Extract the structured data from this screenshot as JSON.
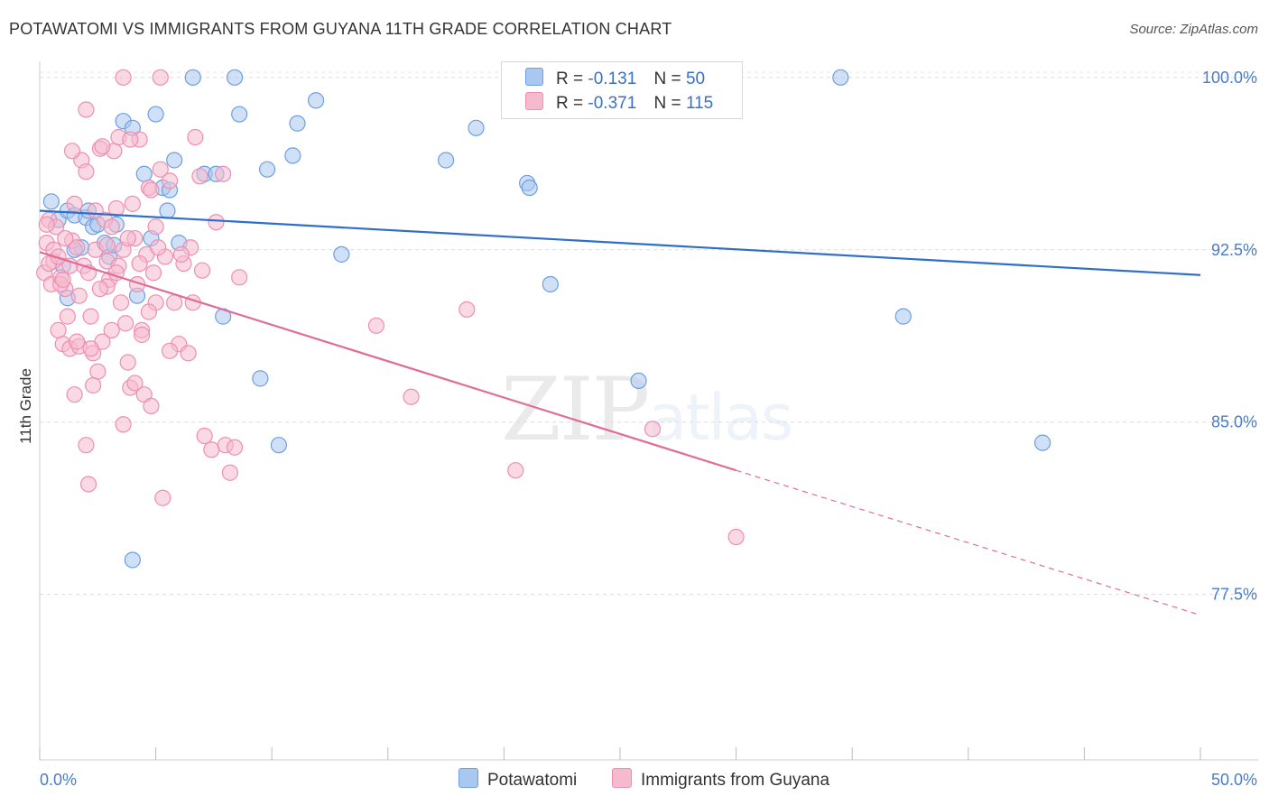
{
  "header": {
    "title": "POTAWATOMI VS IMMIGRANTS FROM GUYANA 11TH GRADE CORRELATION CHART",
    "source": "Source: ZipAtlas.com"
  },
  "watermark": {
    "zip": "ZIP",
    "atlas": "atlas"
  },
  "legend": {
    "r_label": "R =",
    "n_label": "N =",
    "rows": [
      {
        "r": "-0.131",
        "n": "50",
        "color": "#a9c8f0"
      },
      {
        "r": "-0.371",
        "n": "115",
        "color": "#f6b9cd"
      }
    ]
  },
  "chart_data": {
    "type": "scatter",
    "title": "POTAWATOMI VS IMMIGRANTS FROM GUYANA 11TH GRADE CORRELATION CHART",
    "ylabel": "11th Grade",
    "xlabel": "",
    "x_tick_labels": [
      "0.0%",
      "50.0%"
    ],
    "y_tick_labels": [
      "100.0%",
      "92.5%",
      "85.0%",
      "77.5%"
    ],
    "y_ticks": [
      100.0,
      92.5,
      85.0,
      77.5
    ],
    "xlim": [
      0,
      50
    ],
    "ylim": [
      70.3,
      100.7
    ],
    "grid": true,
    "legend_position": "top-center",
    "series": [
      {
        "name": "Potawatomi",
        "color": "#6d9fe0",
        "fill": "#a9c8f0",
        "line_color": "#2f6fcc",
        "trend": {
          "x": [
            0,
            50
          ],
          "y": [
            94.2,
            91.4
          ]
        },
        "points": [
          [
            0.5,
            94.6
          ],
          [
            0.8,
            93.8
          ],
          [
            1.2,
            94.2
          ],
          [
            1.5,
            94.0
          ],
          [
            1.8,
            92.6
          ],
          [
            2.0,
            93.9
          ],
          [
            2.1,
            94.2
          ],
          [
            2.3,
            93.5
          ],
          [
            2.5,
            93.6
          ],
          [
            2.8,
            92.8
          ],
          [
            3.0,
            92.2
          ],
          [
            3.2,
            92.7
          ],
          [
            3.6,
            98.1
          ],
          [
            4.0,
            97.8
          ],
          [
            4.2,
            90.5
          ],
          [
            4.5,
            95.8
          ],
          [
            4.8,
            93.0
          ],
          [
            5.0,
            98.4
          ],
          [
            5.3,
            95.2
          ],
          [
            5.5,
            94.2
          ],
          [
            5.8,
            96.4
          ],
          [
            6.0,
            92.8
          ],
          [
            1.0,
            91.8
          ],
          [
            1.2,
            90.4
          ],
          [
            6.6,
            100.0
          ],
          [
            7.1,
            95.8
          ],
          [
            7.6,
            95.8
          ],
          [
            8.4,
            100.0
          ],
          [
            8.6,
            98.4
          ],
          [
            9.5,
            86.9
          ],
          [
            9.8,
            96.0
          ],
          [
            10.3,
            84.0
          ],
          [
            10.9,
            96.6
          ],
          [
            11.1,
            98.0
          ],
          [
            11.9,
            99.0
          ],
          [
            13.0,
            92.3
          ],
          [
            17.5,
            96.4
          ],
          [
            18.8,
            97.8
          ],
          [
            21.0,
            95.4
          ],
          [
            21.1,
            95.2
          ],
          [
            22.0,
            91.0
          ],
          [
            25.8,
            86.8
          ],
          [
            34.5,
            100.0
          ],
          [
            37.2,
            89.6
          ],
          [
            43.2,
            84.1
          ],
          [
            4.0,
            79.0
          ],
          [
            1.5,
            92.5
          ],
          [
            3.3,
            93.6
          ],
          [
            7.9,
            89.6
          ],
          [
            5.6,
            95.1
          ]
        ]
      },
      {
        "name": "Immigrants from Guyana",
        "color": "#ee8fb0",
        "fill": "#f6b9cd",
        "line_color": "#e06d98",
        "trend": {
          "x": [
            0,
            30
          ],
          "y": [
            92.4,
            82.9
          ]
        },
        "trend_dashed": {
          "x": [
            30,
            50
          ],
          "y": [
            82.9,
            76.6
          ]
        },
        "points": [
          [
            0.2,
            91.5
          ],
          [
            0.3,
            92.8
          ],
          [
            0.4,
            93.8
          ],
          [
            0.5,
            91.0
          ],
          [
            0.6,
            92.0
          ],
          [
            0.7,
            93.5
          ],
          [
            0.8,
            89.0
          ],
          [
            0.9,
            91.3
          ],
          [
            1.0,
            88.4
          ],
          [
            1.1,
            90.8
          ],
          [
            1.2,
            89.6
          ],
          [
            1.3,
            88.2
          ],
          [
            1.4,
            92.9
          ],
          [
            1.5,
            94.5
          ],
          [
            1.6,
            92.6
          ],
          [
            1.7,
            90.5
          ],
          [
            1.8,
            96.4
          ],
          [
            1.9,
            91.8
          ],
          [
            2.0,
            95.9
          ],
          [
            2.1,
            91.5
          ],
          [
            2.2,
            89.6
          ],
          [
            2.3,
            88.0
          ],
          [
            2.4,
            92.5
          ],
          [
            2.5,
            87.2
          ],
          [
            2.6,
            96.9
          ],
          [
            2.7,
            88.5
          ],
          [
            2.8,
            93.8
          ],
          [
            2.9,
            92.0
          ],
          [
            3.0,
            91.2
          ],
          [
            3.1,
            89.0
          ],
          [
            3.2,
            96.8
          ],
          [
            3.3,
            94.3
          ],
          [
            3.4,
            91.8
          ],
          [
            3.5,
            90.2
          ],
          [
            3.6,
            92.5
          ],
          [
            3.7,
            89.3
          ],
          [
            3.8,
            87.6
          ],
          [
            3.9,
            86.5
          ],
          [
            4.0,
            94.5
          ],
          [
            4.1,
            93.0
          ],
          [
            4.2,
            91.0
          ],
          [
            4.3,
            97.3
          ],
          [
            4.4,
            89.0
          ],
          [
            4.5,
            86.2
          ],
          [
            4.6,
            92.3
          ],
          [
            4.7,
            95.2
          ],
          [
            4.8,
            85.7
          ],
          [
            4.9,
            91.5
          ],
          [
            5.0,
            93.5
          ],
          [
            5.2,
            96.0
          ],
          [
            5.4,
            92.2
          ],
          [
            5.6,
            95.5
          ],
          [
            5.8,
            90.2
          ],
          [
            6.0,
            88.4
          ],
          [
            6.2,
            91.9
          ],
          [
            6.4,
            88.0
          ],
          [
            6.5,
            92.6
          ],
          [
            6.7,
            97.4
          ],
          [
            6.9,
            95.7
          ],
          [
            7.1,
            84.4
          ],
          [
            7.4,
            83.8
          ],
          [
            7.6,
            93.7
          ],
          [
            7.9,
            95.8
          ],
          [
            8.0,
            84.0
          ],
          [
            8.2,
            82.8
          ],
          [
            8.4,
            83.9
          ],
          [
            8.6,
            91.3
          ],
          [
            5.2,
            100.0
          ],
          [
            3.6,
            100.0
          ],
          [
            2.0,
            98.6
          ],
          [
            3.4,
            97.4
          ],
          [
            3.9,
            97.3
          ],
          [
            2.7,
            97.0
          ],
          [
            4.8,
            95.1
          ],
          [
            1.4,
            96.8
          ],
          [
            0.6,
            92.5
          ],
          [
            0.9,
            91.0
          ],
          [
            1.1,
            93.0
          ],
          [
            1.7,
            88.3
          ],
          [
            2.3,
            86.6
          ],
          [
            2.0,
            84.0
          ],
          [
            2.1,
            82.3
          ],
          [
            3.6,
            84.9
          ],
          [
            5.3,
            81.7
          ],
          [
            4.4,
            88.8
          ],
          [
            5.0,
            90.2
          ],
          [
            2.9,
            90.9
          ],
          [
            3.1,
            93.5
          ],
          [
            2.4,
            94.2
          ],
          [
            1.3,
            91.8
          ],
          [
            14.5,
            89.2
          ],
          [
            16.0,
            86.1
          ],
          [
            18.4,
            89.9
          ],
          [
            20.5,
            82.9
          ],
          [
            26.4,
            84.7
          ],
          [
            30.0,
            80.0
          ],
          [
            0.4,
            91.9
          ],
          [
            0.8,
            92.2
          ],
          [
            1.0,
            91.2
          ],
          [
            1.5,
            86.2
          ],
          [
            2.2,
            88.2
          ],
          [
            2.6,
            90.8
          ],
          [
            3.3,
            91.5
          ],
          [
            4.1,
            86.7
          ],
          [
            4.7,
            89.8
          ],
          [
            5.6,
            88.1
          ],
          [
            6.1,
            92.3
          ],
          [
            6.6,
            90.2
          ],
          [
            7.0,
            91.6
          ],
          [
            0.3,
            93.6
          ],
          [
            1.6,
            88.5
          ],
          [
            2.9,
            92.7
          ],
          [
            3.8,
            93.0
          ],
          [
            4.3,
            91.9
          ],
          [
            5.1,
            92.6
          ]
        ]
      }
    ]
  }
}
